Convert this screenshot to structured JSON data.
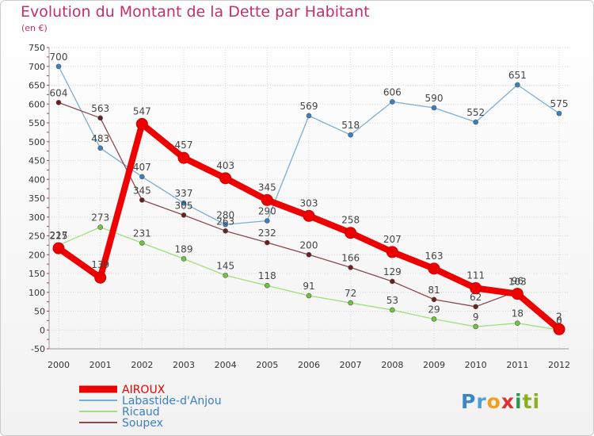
{
  "title": "Evolution du Montant de la Dette par Habitant",
  "subtitle": "(en €)",
  "logo": "Proxiti",
  "chart_data": {
    "type": "line",
    "x": [
      "2000",
      "2001",
      "2002",
      "2003",
      "2004",
      "2005",
      "2006",
      "2007",
      "2008",
      "2009",
      "2010",
      "2011",
      "2012"
    ],
    "ylim": [
      -50,
      750
    ],
    "yticks": [
      -50,
      0,
      50,
      100,
      150,
      200,
      250,
      300,
      350,
      400,
      450,
      500,
      550,
      600,
      650,
      700,
      750
    ],
    "grid": true,
    "legend_position": "bottom-left",
    "series": [
      {
        "name": "Labastide-d'Anjou",
        "color": "#7aaed6",
        "marker": "#3a7fc4",
        "width": 1.3,
        "r": 3,
        "values": [
          700,
          483,
          407,
          337,
          280,
          290,
          569,
          518,
          606,
          590,
          552,
          651,
          575
        ],
        "labels": [
          "700",
          "483",
          "407",
          "337",
          "280",
          "290",
          "569",
          "518",
          "606",
          "590",
          "552",
          "651",
          "575"
        ]
      },
      {
        "name": "Ricaud",
        "color": "#9ee07a",
        "marker": "#6cc83a",
        "width": 1.3,
        "r": 3,
        "values": [
          225,
          273,
          231,
          189,
          145,
          118,
          91,
          72,
          53,
          29,
          9,
          18,
          0
        ],
        "labels": [
          "225",
          "273",
          "231",
          "189",
          "145",
          "118",
          "91",
          "72",
          "53",
          "29",
          "9",
          "18",
          "0"
        ]
      },
      {
        "name": "Soupex",
        "color": "#8a4a4a",
        "marker": "#6a2020",
        "width": 1.3,
        "r": 3,
        "values": [
          604,
          563,
          345,
          305,
          263,
          232,
          200,
          166,
          129,
          81,
          62,
          103,
          0
        ],
        "labels": [
          "604",
          "563",
          "345",
          "305",
          "263",
          "232",
          "200",
          "166",
          "129",
          "81",
          "62",
          "103",
          "0"
        ]
      },
      {
        "name": "AIROUX",
        "color": "#ee0000",
        "marker": "#ee0000",
        "width": 8,
        "r": 7,
        "values": [
          217,
          139,
          547,
          457,
          403,
          345,
          303,
          258,
          207,
          163,
          111,
          96,
          2
        ],
        "labels": [
          "217",
          "139",
          "547",
          "457",
          "403",
          "345",
          "303",
          "258",
          "207",
          "163",
          "111",
          "96",
          "2"
        ]
      }
    ],
    "legend_order": [
      "AIROUX",
      "Labastide-d'Anjou",
      "Ricaud",
      "Soupex"
    ]
  }
}
